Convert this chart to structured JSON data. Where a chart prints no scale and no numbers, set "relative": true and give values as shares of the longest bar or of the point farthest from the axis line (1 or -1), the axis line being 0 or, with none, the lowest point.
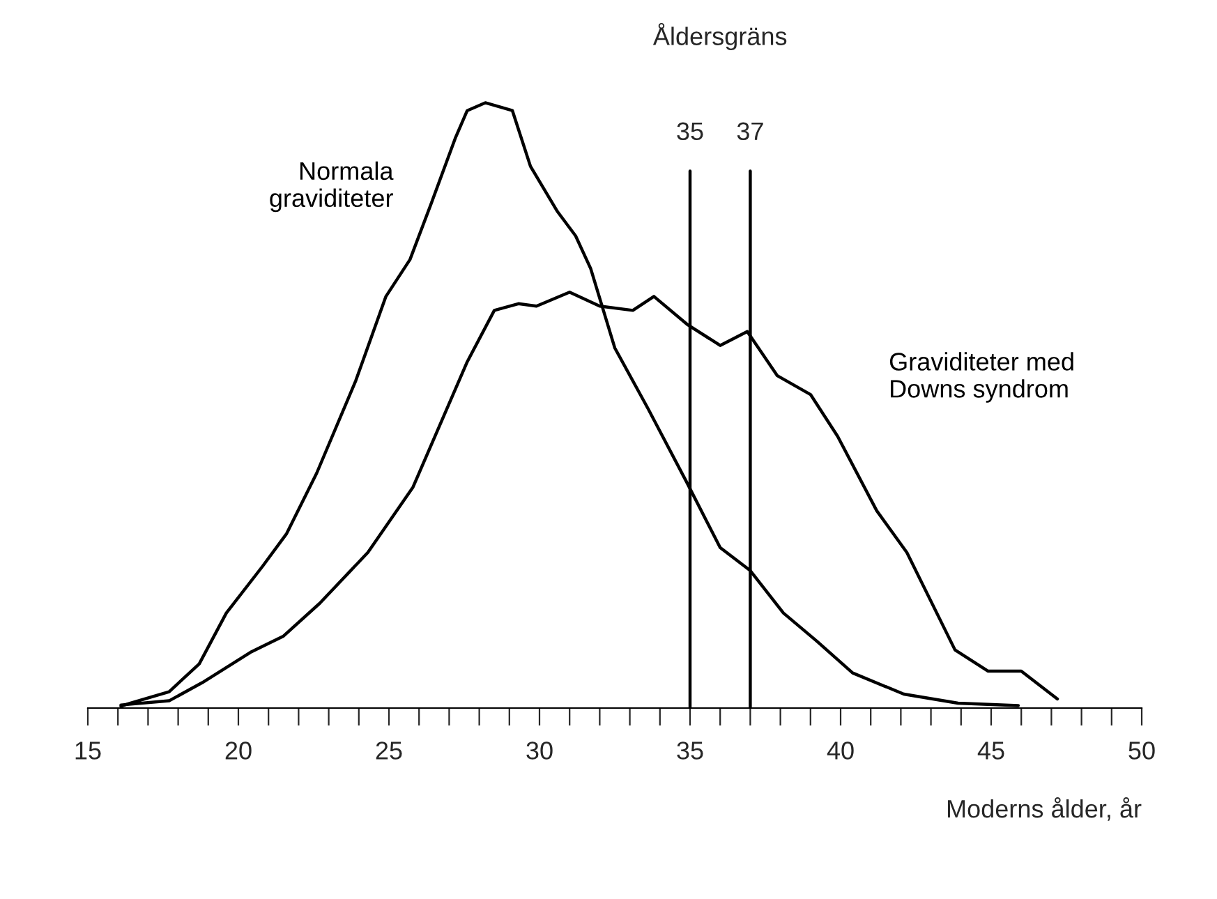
{
  "chart_data": {
    "type": "line",
    "relative": true,
    "xlabel": "Moderns ålder, år",
    "xlim": [
      15,
      50
    ],
    "xticks": [
      15,
      {
        "value": 16,
        "label": null
      },
      {
        "value": 17,
        "label": null
      },
      {
        "value": 18,
        "label": null
      },
      {
        "value": 19,
        "label": null
      },
      20,
      {
        "value": 21,
        "label": null
      },
      {
        "value": 22,
        "label": null
      },
      {
        "value": 23,
        "label": null
      },
      {
        "value": 24,
        "label": null
      },
      25,
      {
        "value": 26,
        "label": null
      },
      {
        "value": 27,
        "label": null
      },
      {
        "value": 28,
        "label": null
      },
      {
        "value": 29,
        "label": null
      },
      30,
      {
        "value": 31,
        "label": null
      },
      {
        "value": 32,
        "label": null
      },
      {
        "value": 33,
        "label": null
      },
      {
        "value": 34,
        "label": null
      },
      35,
      {
        "value": 36,
        "label": null
      },
      {
        "value": 37,
        "label": null
      },
      {
        "value": 38,
        "label": null
      },
      {
        "value": 39,
        "label": null
      },
      40,
      {
        "value": 41,
        "label": null
      },
      {
        "value": 42,
        "label": null
      },
      {
        "value": 43,
        "label": null
      },
      {
        "value": 44,
        "label": null
      },
      45,
      {
        "value": 46,
        "label": null
      },
      {
        "value": 47,
        "label": null
      },
      {
        "value": 48,
        "label": null
      },
      {
        "value": 49,
        "label": null
      },
      50
    ],
    "tick_labels": "x",
    "grid": false,
    "legend": false,
    "marker": "none",
    "line_style": "solid",
    "series": [
      {
        "name": "Normala\ngraviditeter",
        "color": "#000000",
        "x": [
          16.1,
          16.4,
          17.7,
          18.7,
          19.6,
          20.8,
          21.6,
          22.6,
          23.9,
          24.9,
          25.7,
          26.4,
          27.2,
          27.6,
          28.2,
          29.1,
          29.7,
          30.6,
          31.2,
          31.7,
          32.5,
          33.6,
          34.9,
          36.0,
          37.0,
          38.1,
          39.2,
          40.4,
          42.1,
          43.9,
          45.9
        ],
        "values": [
          0.003,
          0.008,
          0.027,
          0.073,
          0.157,
          0.234,
          0.288,
          0.388,
          0.541,
          0.68,
          0.741,
          0.833,
          0.941,
          0.987,
          1.0,
          0.987,
          0.895,
          0.82,
          0.78,
          0.726,
          0.595,
          0.495,
          0.372,
          0.265,
          0.227,
          0.157,
          0.111,
          0.058,
          0.023,
          0.008,
          0.004
        ]
      },
      {
        "name": "Graviditeter med\nDowns syndrom",
        "color": "#000000",
        "x": [
          16.1,
          17.7,
          18.8,
          20.4,
          21.5,
          22.7,
          24.3,
          25.8,
          27.6,
          28.5,
          29.3,
          29.9,
          31.0,
          32.0,
          33.1,
          33.8,
          34.9,
          36.0,
          36.9,
          37.9,
          39.0,
          39.9,
          41.2,
          42.2,
          43.8,
          44.9,
          46.0,
          47.2
        ],
        "values": [
          0.005,
          0.012,
          0.042,
          0.092,
          0.119,
          0.173,
          0.257,
          0.365,
          0.572,
          0.657,
          0.668,
          0.664,
          0.687,
          0.664,
          0.657,
          0.68,
          0.634,
          0.599,
          0.622,
          0.549,
          0.518,
          0.449,
          0.326,
          0.257,
          0.096,
          0.061,
          0.061,
          0.015
        ]
      }
    ],
    "ref_lines": [
      {
        "axis": "x",
        "value": 35,
        "label": "35",
        "color": "#000000"
      },
      {
        "axis": "x",
        "value": 37,
        "label": "37",
        "color": "#000000"
      }
    ],
    "annotations": [
      "Åldersgräns"
    ]
  }
}
